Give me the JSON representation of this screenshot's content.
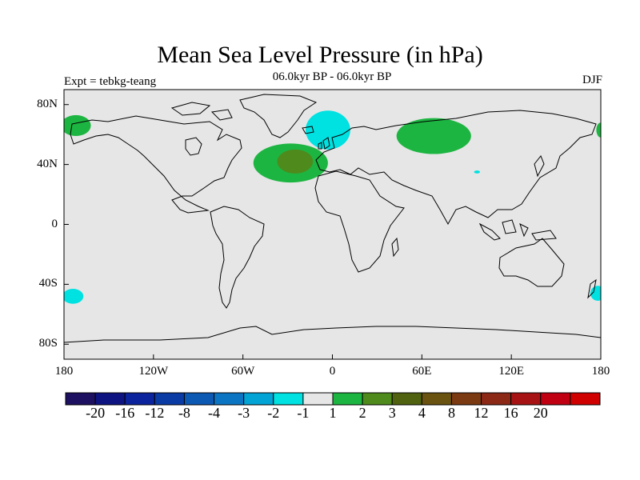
{
  "title": "Mean Sea Level Pressure (in hPa)",
  "subtitle": "06.0kyr BP - 06.0kyr BP",
  "expt_label": "Expt = tebkg-teang",
  "season": "DJF",
  "map": {
    "background_color": "#e6e6e6",
    "coastline_color": "#000000",
    "lat_ticks": [
      {
        "label": "80N",
        "value": 80
      },
      {
        "label": "40N",
        "value": 40
      },
      {
        "label": "0",
        "value": 0
      },
      {
        "label": "40S",
        "value": -40
      },
      {
        "label": "80S",
        "value": -80
      }
    ],
    "lon_ticks": [
      {
        "label": "180",
        "value": -180
      },
      {
        "label": "120W",
        "value": -120
      },
      {
        "label": "60W",
        "value": -60
      },
      {
        "label": "0",
        "value": 0
      },
      {
        "label": "60E",
        "value": 60
      },
      {
        "label": "120E",
        "value": 120
      },
      {
        "label": "180",
        "value": 180
      }
    ]
  },
  "anomaly_regions": [
    {
      "name": "north-pacific-west-positive",
      "color": "#1db541",
      "lon": -172,
      "lat": 66,
      "rlon": 10,
      "rlat": 7
    },
    {
      "name": "north-pacific-east-positive",
      "color": "#1db541",
      "lon": 180,
      "lat": 63,
      "rlon": 3,
      "rlat": 5
    },
    {
      "name": "north-atlantic-positive",
      "color": "#1db541",
      "lon": -28,
      "lat": 41,
      "rlon": 25,
      "rlat": 13
    },
    {
      "name": "north-atlantic-core",
      "color": "#4e8a1c",
      "lon": -25,
      "lat": 42,
      "rlon": 12,
      "rlat": 8
    },
    {
      "name": "siberia-positive",
      "color": "#1db541",
      "lon": 68,
      "lat": 59,
      "rlon": 25,
      "rlat": 12
    },
    {
      "name": "greenland-sea-negative",
      "color": "#00e1e1",
      "lon": -3,
      "lat": 63,
      "rlon": 15,
      "rlat": 13
    },
    {
      "name": "central-asia-negative",
      "color": "#00e1e1",
      "lon": 97,
      "lat": 35,
      "rlon": 2,
      "rlat": 1
    },
    {
      "name": "south-pacific-west-negative",
      "color": "#00e1e1",
      "lon": -174,
      "lat": -48,
      "rlon": 7,
      "rlat": 5
    },
    {
      "name": "south-pacific-east-negative",
      "color": "#00e1e1",
      "lon": 178,
      "lat": -46,
      "rlon": 5,
      "rlat": 5
    }
  ],
  "colorbar": {
    "colors": [
      "#1d1060",
      "#0e1382",
      "#0b239c",
      "#0a3aa4",
      "#0b59b3",
      "#0c75c3",
      "#02a3d5",
      "#00e1e1",
      "#e6e6e6",
      "#1db541",
      "#4e8a1c",
      "#50620f",
      "#6a5210",
      "#7c3a12",
      "#8b2816",
      "#a71314",
      "#c00012",
      "#d10000"
    ],
    "labels": [
      "-20",
      "-16",
      "-12",
      "-8",
      "-4",
      "-3",
      "-2",
      "-1",
      "1",
      "2",
      "3",
      "4",
      "8",
      "12",
      "16",
      "20"
    ]
  }
}
